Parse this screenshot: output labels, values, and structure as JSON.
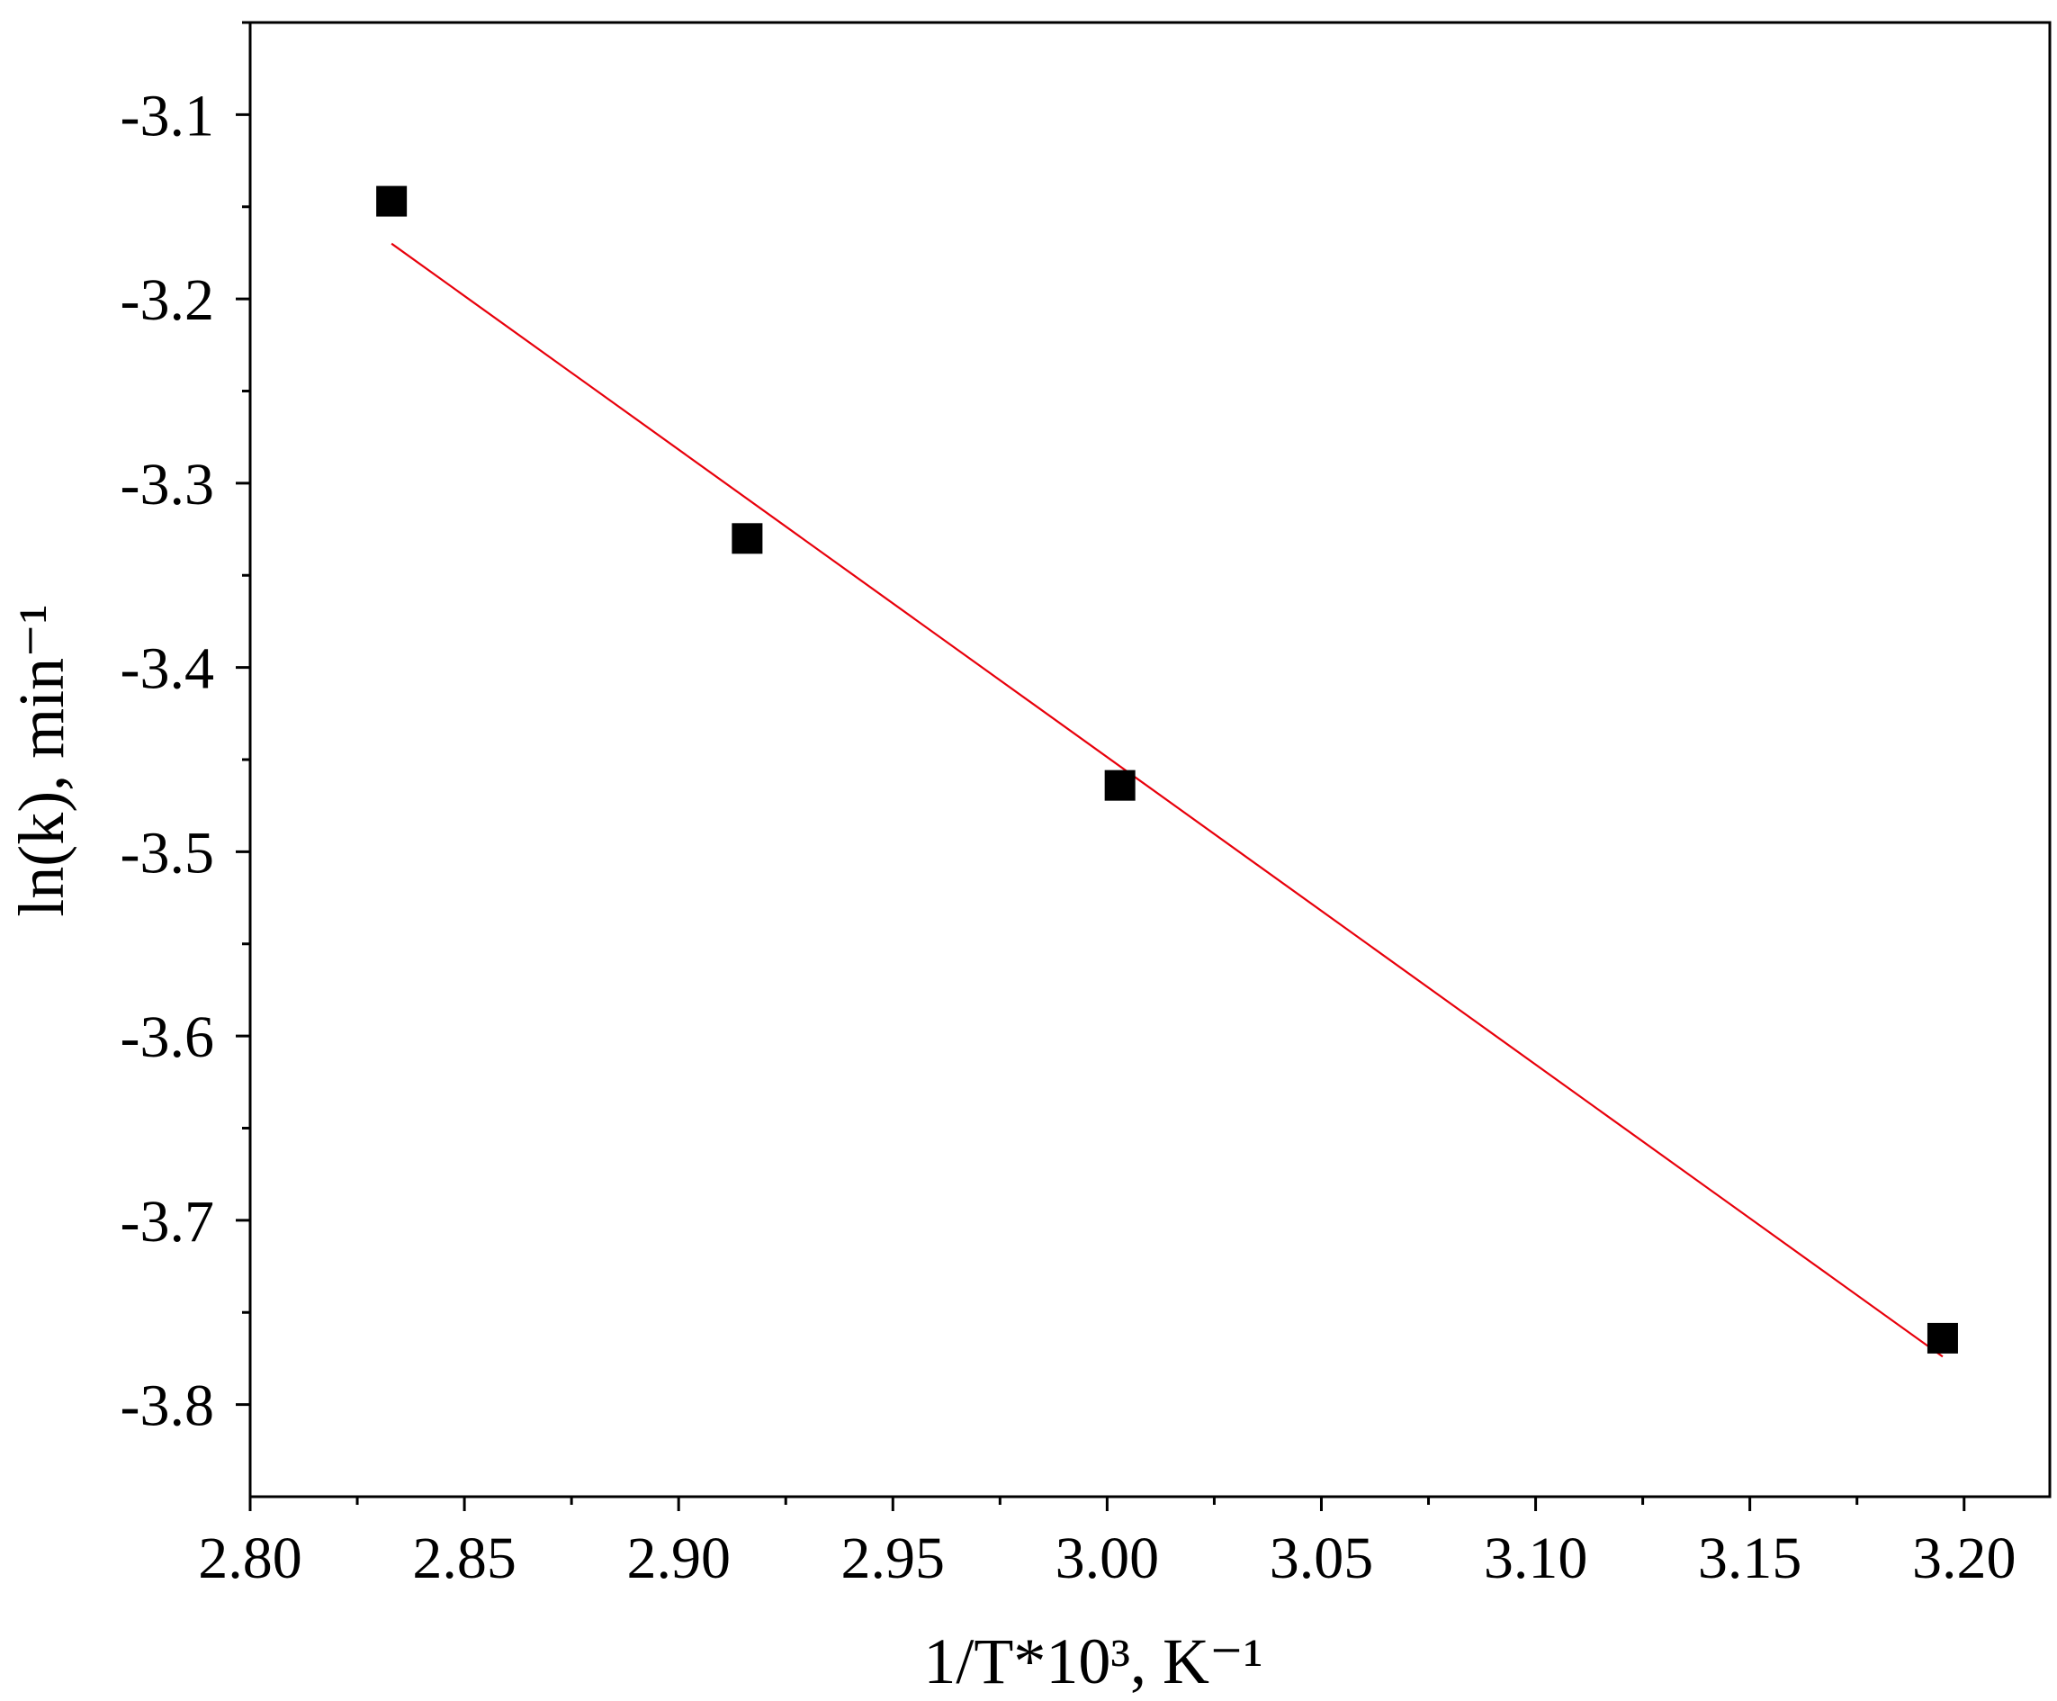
{
  "chart_data": {
    "type": "scatter",
    "title": "",
    "xlabel": "1/T*10³, K⁻¹",
    "ylabel": "ln(k), min⁻¹",
    "xlim": [
      2.8,
      3.22
    ],
    "ylim": [
      -3.85,
      -3.05
    ],
    "xticks": [
      2.8,
      2.85,
      2.9,
      2.95,
      3.0,
      3.05,
      3.1,
      3.15,
      3.2
    ],
    "xtick_labels": [
      "2.80",
      "2.85",
      "2.90",
      "2.95",
      "3.00",
      "3.05",
      "3.10",
      "3.15",
      "3.20"
    ],
    "yticks": [
      -3.1,
      -3.2,
      -3.3,
      -3.4,
      -3.5,
      -3.6,
      -3.7,
      -3.8
    ],
    "ytick_labels": [
      "-3.1",
      "-3.2",
      "-3.3",
      "-3.4",
      "-3.5",
      "-3.6",
      "-3.7",
      "-3.8"
    ],
    "grid": false,
    "series": [
      {
        "type": "scatter",
        "marker": "square",
        "color": "#000000",
        "points": [
          {
            "x": 2.833,
            "y": -3.147
          },
          {
            "x": 2.916,
            "y": -3.33
          },
          {
            "x": 3.003,
            "y": -3.464
          },
          {
            "x": 3.195,
            "y": -3.764
          }
        ]
      },
      {
        "type": "line",
        "color": "#e8000b",
        "points": [
          {
            "x": 2.833,
            "y": -3.17
          },
          {
            "x": 3.195,
            "y": -3.774
          }
        ]
      }
    ]
  }
}
